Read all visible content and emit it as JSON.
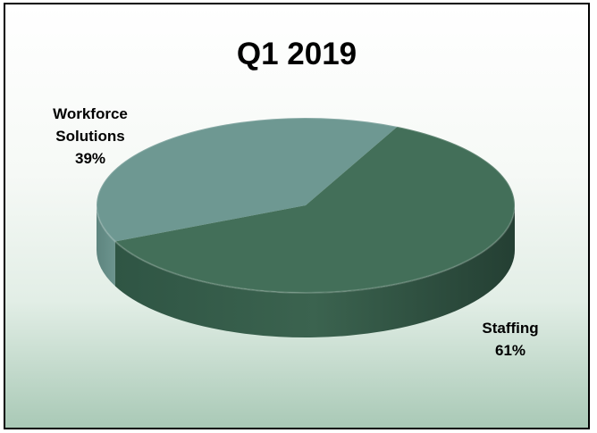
{
  "chart_data": {
    "type": "pie",
    "title": "Q1 2019",
    "slices": [
      {
        "label": "Workforce Solutions",
        "label_lines": [
          "Workforce",
          "Solutions"
        ],
        "value": 39,
        "value_label": "39%",
        "color": "#6e9892"
      },
      {
        "label": "Staffing",
        "label_lines": [
          "Staffing"
        ],
        "value": 61,
        "value_label": "61%",
        "color": "#436f59"
      }
    ],
    "style": "3d"
  }
}
